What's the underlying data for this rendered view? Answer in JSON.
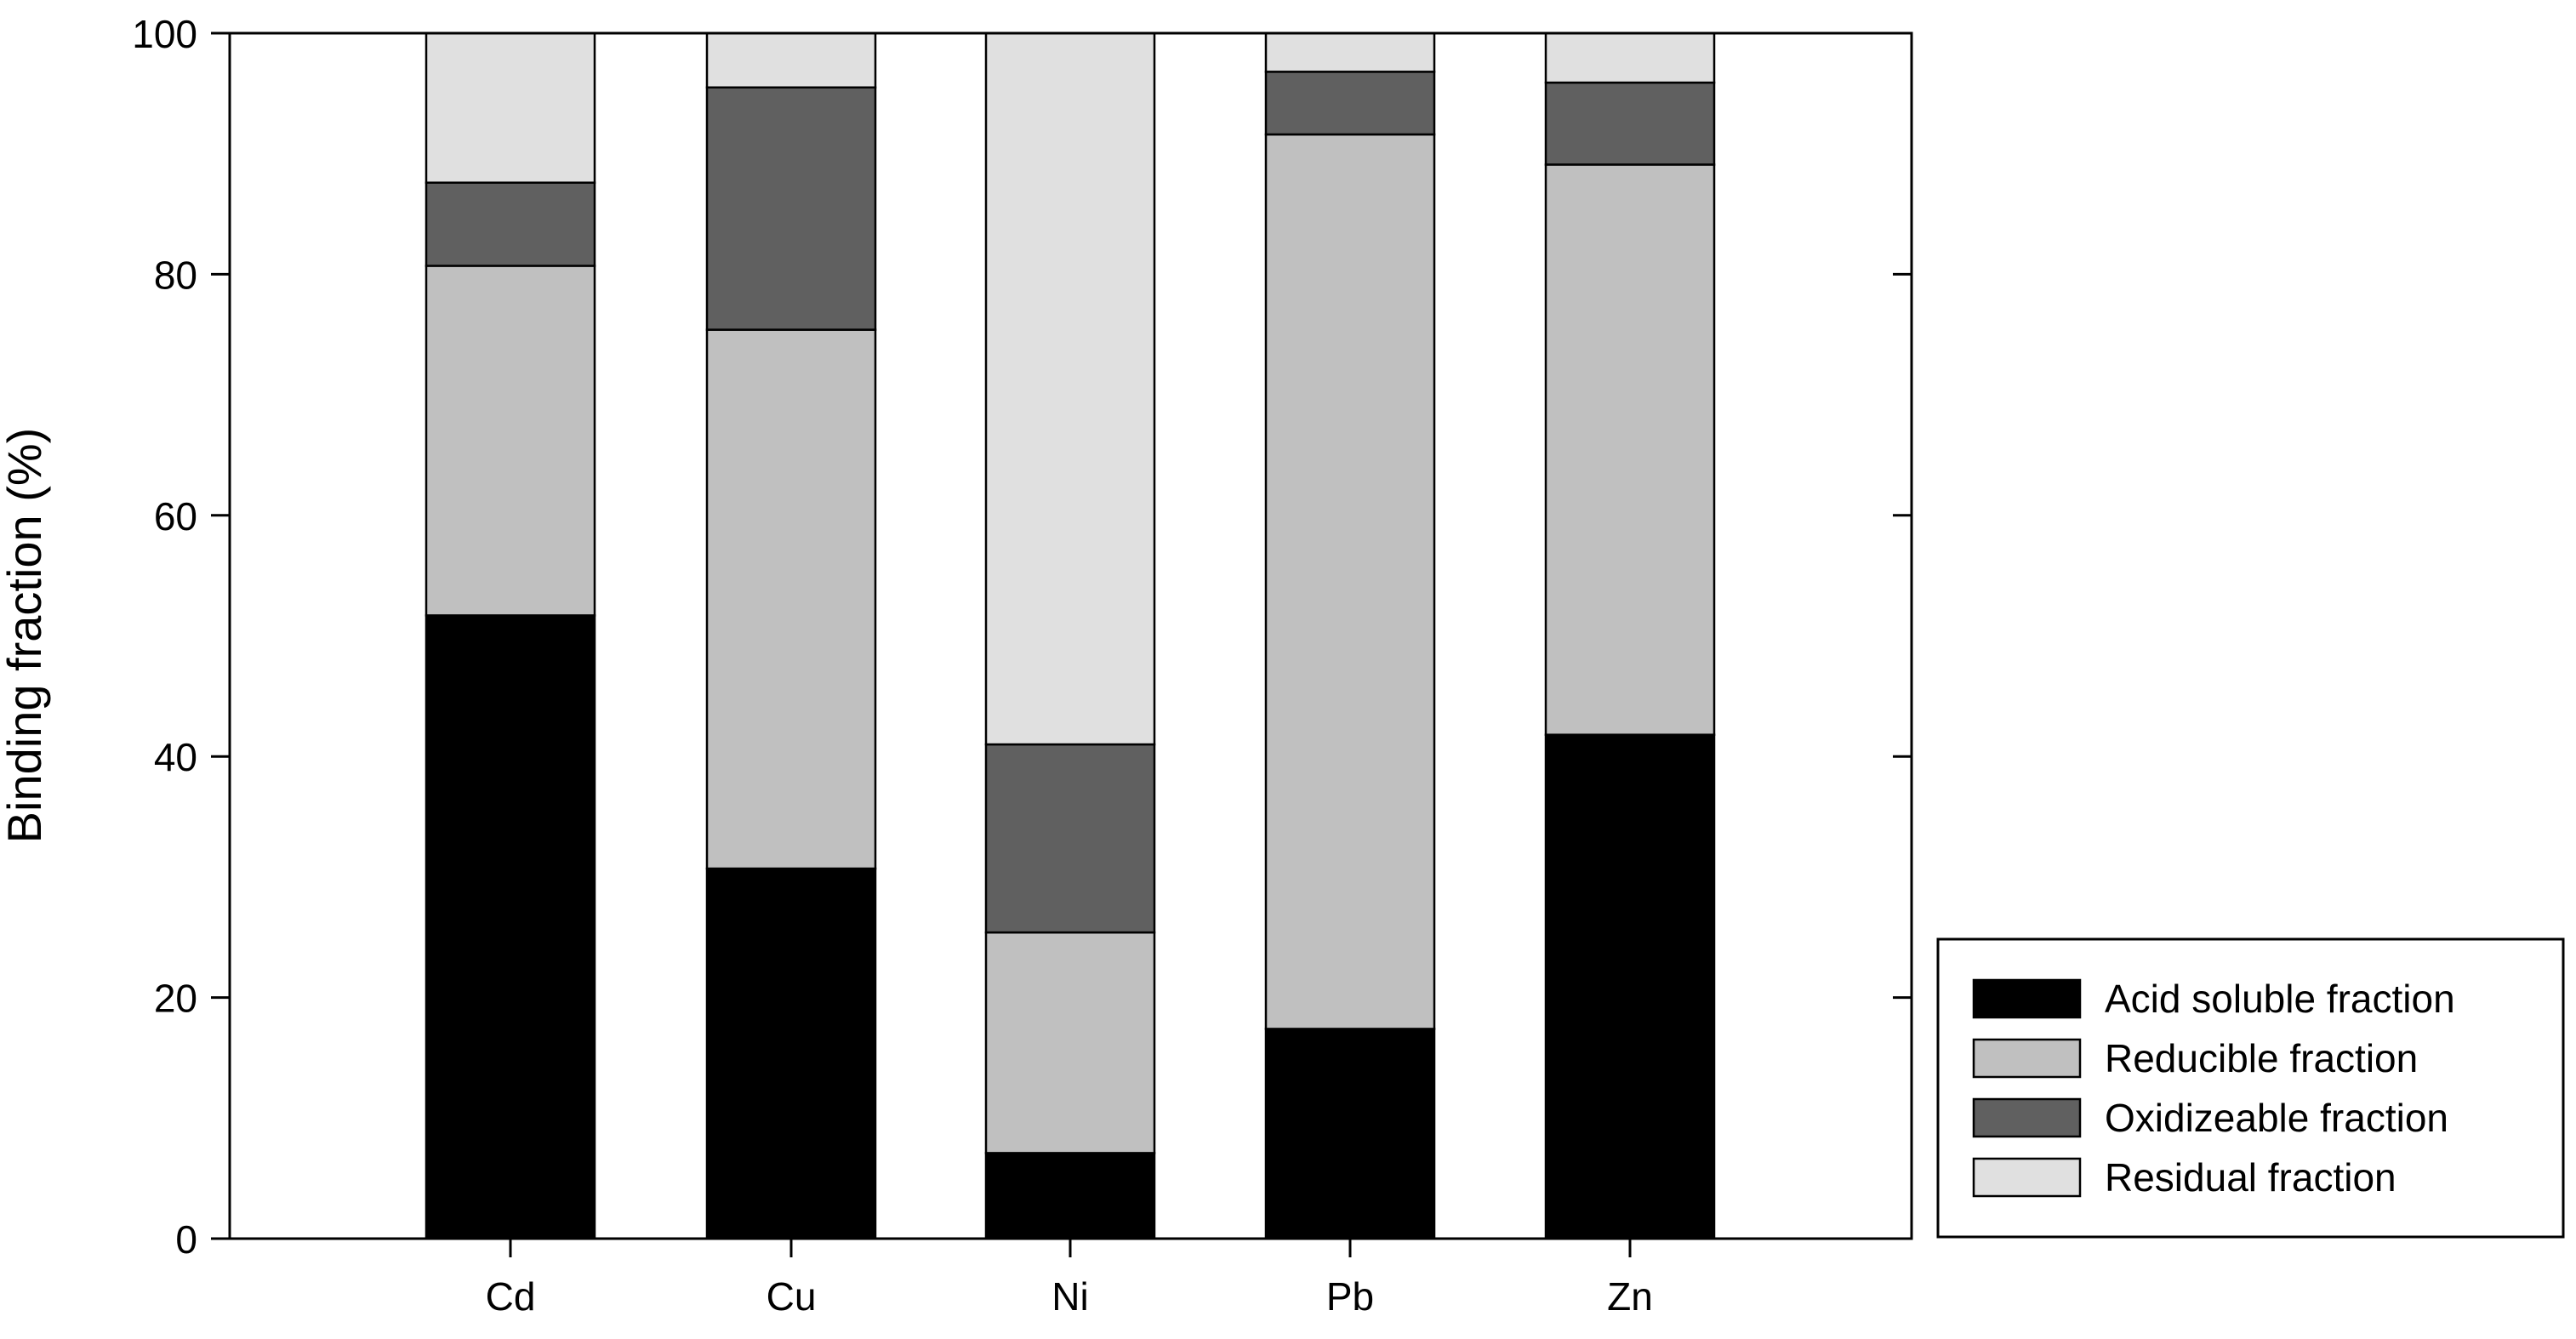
{
  "chart_data": {
    "type": "bar",
    "stacked": true,
    "title": "",
    "xlabel": "",
    "ylabel": "Binding fraction (%)",
    "ylim": [
      0,
      100
    ],
    "yticks": [
      0,
      20,
      40,
      60,
      80,
      100
    ],
    "grid": false,
    "legend_position": "bottom-right, outside plot area",
    "categories": [
      "Cd",
      "Cu",
      "Ni",
      "Pb",
      "Zn"
    ],
    "series": [
      {
        "name": "Acid soluble fraction",
        "color": "#000000",
        "values": [
          51.7,
          30.7,
          7.1,
          17.4,
          41.8
        ]
      },
      {
        "name": "Reducible fraction",
        "color": "#c0c0c0",
        "values": [
          29.0,
          44.7,
          18.3,
          74.2,
          47.3
        ]
      },
      {
        "name": "Oxidizeable fraction",
        "color": "#606060",
        "values": [
          6.9,
          20.1,
          15.6,
          5.2,
          6.8
        ]
      },
      {
        "name": "Residual fraction",
        "color": "#e0e0e0",
        "values": [
          12.4,
          4.5,
          59.0,
          3.2,
          4.1
        ]
      }
    ]
  }
}
